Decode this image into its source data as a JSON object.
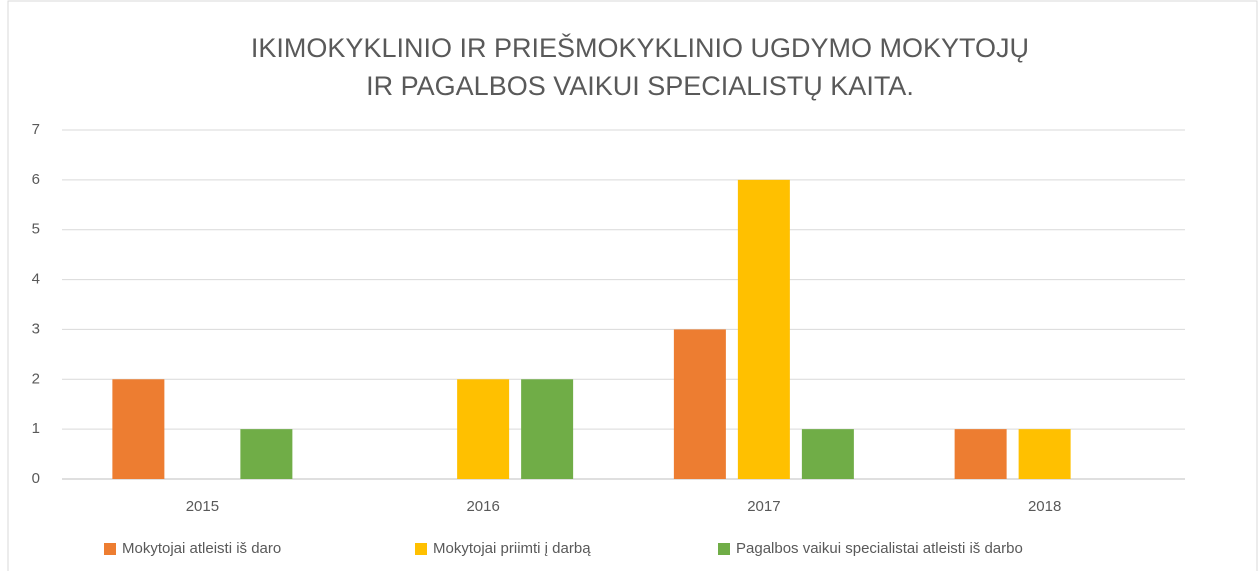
{
  "chart_data": {
    "type": "bar",
    "title": [
      "IKIMOKYKLINIO IR PRIEŠMOKYKLINIO UGDYMO MOKYTOJŲ",
      "IR PAGALBOS VAIKUI SPECIALISTŲ KAITA."
    ],
    "categories": [
      "2015",
      "2016",
      "2017",
      "2018"
    ],
    "series": [
      {
        "name": "Mokytojai atleisti iš daro",
        "color": "#ed7d31",
        "values": [
          2,
          0,
          3,
          1
        ]
      },
      {
        "name": "Mokytojai priimti į darbą",
        "color": "#ffc000",
        "values": [
          0,
          2,
          6,
          1
        ]
      },
      {
        "name": "Pagalbos vaikui specialistai atleisti iš darbo",
        "color": "#70ad47",
        "values": [
          1,
          2,
          1,
          0
        ]
      }
    ],
    "ylim": [
      0,
      7
    ],
    "yticks": [
      0,
      1,
      2,
      3,
      4,
      5,
      6,
      7
    ],
    "grid": true,
    "legend": "bottom"
  }
}
